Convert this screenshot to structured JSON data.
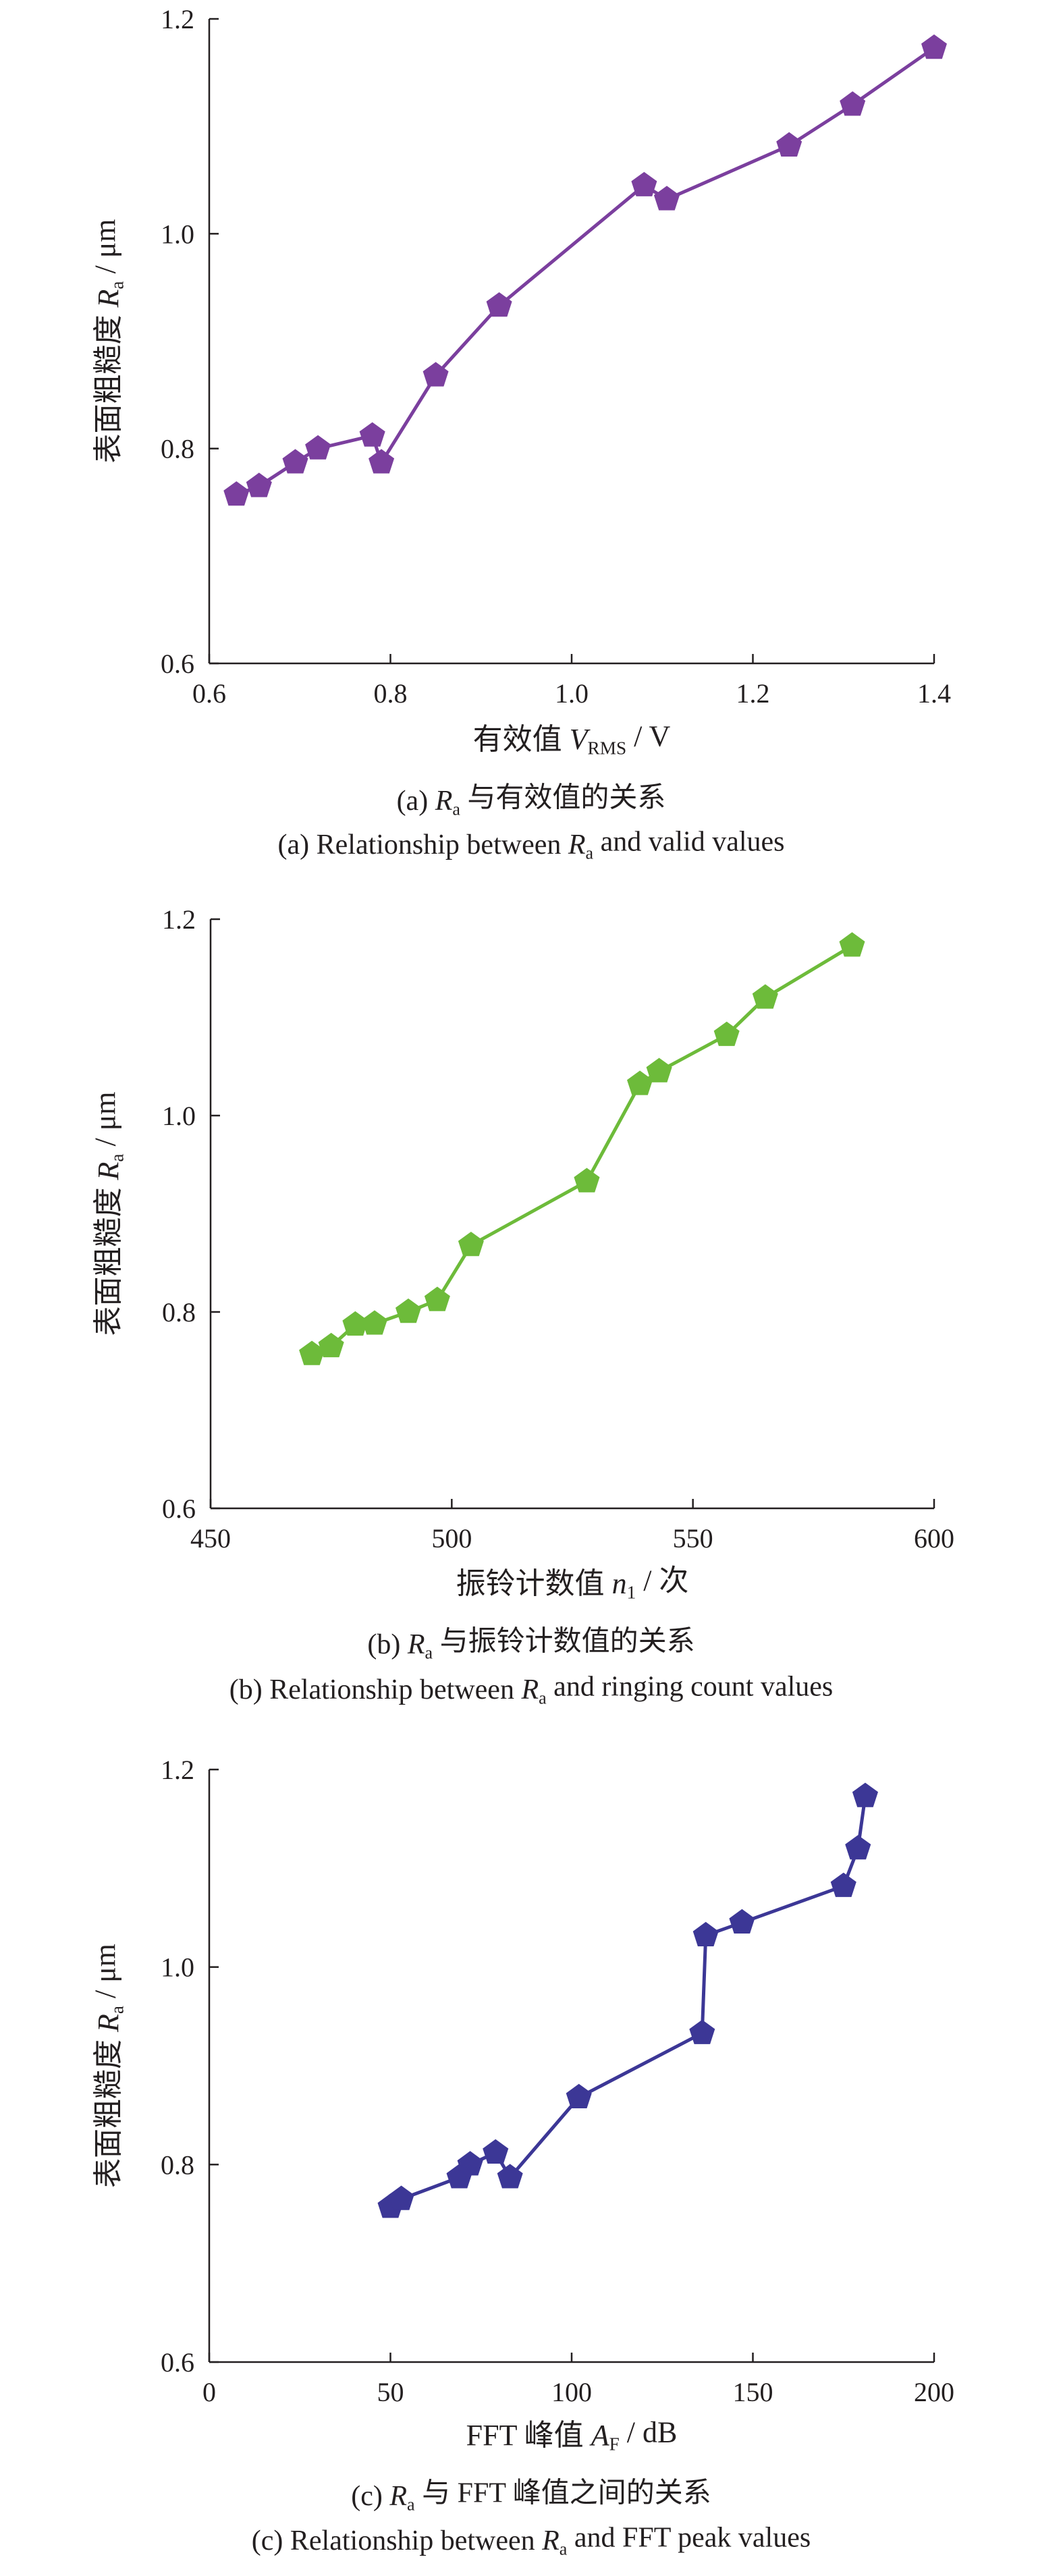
{
  "figure": {
    "panels": [
      {
        "xlabel": {
          "main": "有效值 ",
          "var": "V",
          "sub": "RMS",
          "unit": " / V"
        },
        "ylabel": {
          "main": "表面粗糙度 ",
          "var": "R",
          "sub": "a",
          "unit": " / μm"
        },
        "caption_cn": {
          "pre": "(a) ",
          "var": "R",
          "sub": "a",
          "post": " 与有效值的关系"
        },
        "caption_en": {
          "pre": "(a) Relationship between ",
          "var": "R",
          "sub": "a",
          "post": " and valid values"
        }
      },
      {
        "xlabel": {
          "main": "振铃计数值 ",
          "var": "n",
          "sub": "1",
          "unit": " / 次"
        },
        "ylabel": {
          "main": "表面粗糙度 ",
          "var": "R",
          "sub": "a",
          "unit": " / μm"
        },
        "caption_cn": {
          "pre": "(b) ",
          "var": "R",
          "sub": "a",
          "post": " 与振铃计数值的关系"
        },
        "caption_en": {
          "pre": "(b) Relationship between ",
          "var": "R",
          "sub": "a",
          "post": " and ringing count values"
        }
      },
      {
        "xlabel": {
          "main": "FFT 峰值 ",
          "var": "A",
          "sub": "F",
          "unit": " / dB"
        },
        "ylabel": {
          "main": "表面粗糙度 ",
          "var": "R",
          "sub": "a",
          "unit": " / μm"
        },
        "caption_cn": {
          "pre": "(c) ",
          "var": "R",
          "sub": "a",
          "post": " 与 FFT 峰值之间的关系"
        },
        "caption_en": {
          "pre": "(c) Relationship between ",
          "var": "R",
          "sub": "a",
          "post": " and FFT peak values"
        }
      }
    ]
  },
  "chart_data": [
    {
      "type": "line",
      "marker": "pentagon",
      "color": "#7b3f9e",
      "xlim": [
        0.6,
        1.4
      ],
      "ylim": [
        0.6,
        1.2
      ],
      "xticks": [
        "0.6",
        "0.8",
        "1.0",
        "1.2",
        "1.4"
      ],
      "yticks": [
        "0.6",
        "0.8",
        "1.0",
        "1.2"
      ],
      "grid": false,
      "series": [
        {
          "x": [
            0.63,
            0.655,
            0.695,
            0.72,
            0.78,
            0.79,
            0.85,
            0.92,
            1.08,
            1.105,
            1.24,
            1.31,
            1.4
          ],
          "y": [
            0.757,
            0.765,
            0.787,
            0.8,
            0.812,
            0.787,
            0.868,
            0.933,
            1.045,
            1.032,
            1.082,
            1.12,
            1.173
          ]
        }
      ]
    },
    {
      "type": "line",
      "marker": "pentagon",
      "color": "#6dbb3a",
      "xlim": [
        450,
        600
      ],
      "ylim": [
        0.6,
        1.2
      ],
      "xticks": [
        "450",
        "500",
        "550",
        "600"
      ],
      "yticks": [
        "0.6",
        "0.8",
        "1.0",
        "1.2"
      ],
      "grid": false,
      "series": [
        {
          "x": [
            471,
            475,
            480,
            484,
            491,
            497,
            504,
            528,
            539,
            543,
            557,
            565,
            583
          ],
          "y": [
            0.757,
            0.765,
            0.787,
            0.788,
            0.8,
            0.812,
            0.868,
            0.933,
            1.032,
            1.045,
            1.082,
            1.12,
            1.173
          ]
        }
      ]
    },
    {
      "type": "line",
      "marker": "pentagon",
      "color": "#3c3796",
      "xlim": [
        0,
        200
      ],
      "ylim": [
        0.6,
        1.2
      ],
      "xticks": [
        "0",
        "50",
        "100",
        "150",
        "200"
      ],
      "yticks": [
        "0.6",
        "0.8",
        "1.0",
        "1.2"
      ],
      "grid": false,
      "series": [
        {
          "x": [
            50,
            53,
            69,
            72,
            79,
            83,
            102,
            136,
            137,
            147,
            175,
            179,
            181
          ],
          "y": [
            0.757,
            0.765,
            0.787,
            0.8,
            0.812,
            0.787,
            0.868,
            0.933,
            1.032,
            1.045,
            1.082,
            1.12,
            1.173
          ]
        }
      ]
    }
  ]
}
